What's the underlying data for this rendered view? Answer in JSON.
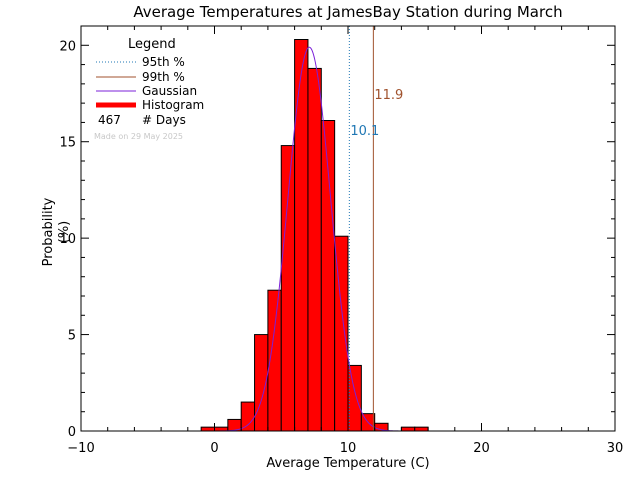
{
  "chart_data": {
    "type": "bar",
    "title": "Average Temperatures at JamesBay Station during March",
    "xlabel": "Average Temperature (C)",
    "ylabel_line1": "Probability",
    "ylabel_line2": "(%)",
    "xlim": [
      -10,
      30
    ],
    "ylim": [
      0,
      21
    ],
    "xticks": [
      -10,
      0,
      10,
      20,
      30
    ],
    "xtick_labels": [
      "−10",
      "0",
      "10",
      "20",
      "30"
    ],
    "yticks": [
      0,
      5,
      10,
      15,
      20
    ],
    "ytick_labels": [
      "0",
      "5",
      "10",
      "15",
      "20"
    ],
    "bin_width": 1,
    "histogram": [
      {
        "x_start": -1,
        "value": 0.2
      },
      {
        "x_start": 0,
        "value": 0.2
      },
      {
        "x_start": 1,
        "value": 0.6
      },
      {
        "x_start": 2,
        "value": 1.5
      },
      {
        "x_start": 3,
        "value": 5.0
      },
      {
        "x_start": 4,
        "value": 7.3
      },
      {
        "x_start": 5,
        "value": 14.8
      },
      {
        "x_start": 6,
        "value": 20.3
      },
      {
        "x_start": 7,
        "value": 18.8
      },
      {
        "x_start": 8,
        "value": 16.1
      },
      {
        "x_start": 9,
        "value": 10.1
      },
      {
        "x_start": 10,
        "value": 3.4
      },
      {
        "x_start": 11,
        "value": 0.9
      },
      {
        "x_start": 12,
        "value": 0.4
      },
      {
        "x_start": 14,
        "value": 0.2
      },
      {
        "x_start": 15,
        "value": 0.2
      }
    ],
    "gaussian": {
      "mean": 7.1,
      "sigma": 1.6,
      "peak": 19.9
    },
    "percentile_95": {
      "value": 10.1,
      "label": "10.1",
      "color": "#1f77b4"
    },
    "percentile_99": {
      "value": 11.9,
      "label": "11.9",
      "color": "#a0522d"
    },
    "colors": {
      "histogram": "#ff0000",
      "gaussian": "#7b20d8",
      "p95": "#1f77b4",
      "p99": "#a0522d"
    },
    "legend": {
      "title": "Legend",
      "items": [
        {
          "label": "95th %",
          "style": "dotted",
          "color": "#1f77b4"
        },
        {
          "label": "99th %",
          "style": "solid",
          "color": "#a0522d"
        },
        {
          "label": "Gaussian",
          "style": "solid",
          "color": "#7b20d8"
        },
        {
          "label": "Histogram",
          "style": "thick",
          "color": "#ff0000"
        }
      ],
      "days_count": "467",
      "days_label": "# Days",
      "made_on": "Made on 29 May 2025"
    }
  }
}
